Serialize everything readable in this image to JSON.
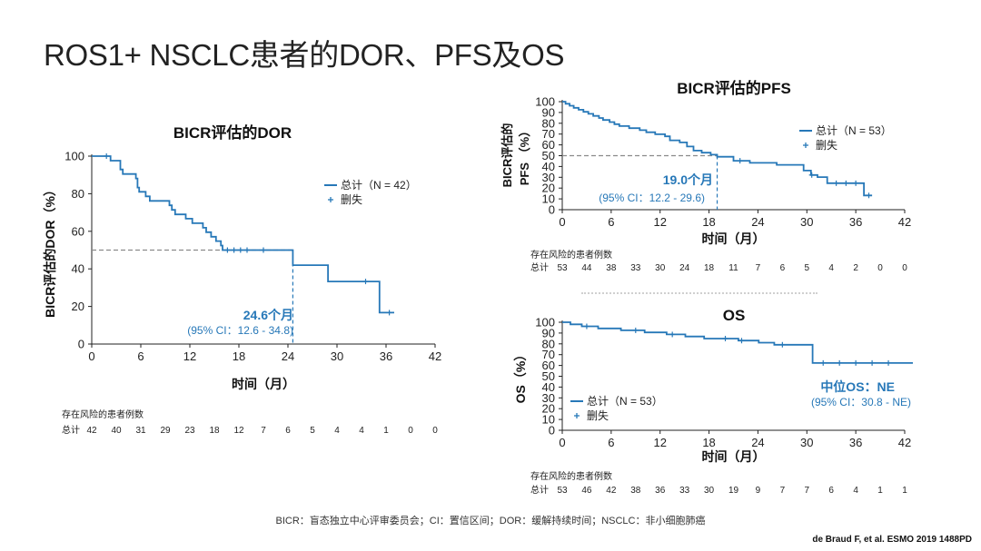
{
  "title": "ROS1+ NSCLC患者的DOR、PFS及OS",
  "footnote": "BICR：盲态独立中心评审委员会；CI：置信区间；DOR：缓解持续时间；NSCLC：非小细胞肺癌",
  "citation": "de Braud F, et al. ESMO 2019 1488PD",
  "colors": {
    "curve": "#2778b8",
    "axis": "#222222",
    "median_line": "#8a8a8a",
    "annotation": "#2778b8"
  },
  "chart_data": [
    {
      "id": "dor",
      "type": "line",
      "title": "BICR评估的DOR",
      "ylabel": "BICR评估的DOR（%）",
      "xlabel": "时间（月）",
      "xlim": [
        0,
        42
      ],
      "ylim": [
        0,
        100
      ],
      "xticks": [
        0,
        6,
        12,
        18,
        24,
        30,
        36,
        42
      ],
      "yticks": [
        0,
        20,
        40,
        60,
        80,
        100
      ],
      "legend": {
        "series": "总计（N = 42）",
        "censor": "删失",
        "placement": "top-right"
      },
      "median": {
        "value": 24.6,
        "label": "24.6个月",
        "ci": "(95% CI：12.6 - 34.8)"
      },
      "series": [
        {
          "name": "总计（N = 42）",
          "steps": [
            [
              0,
              100
            ],
            [
              2.3,
              97.6
            ],
            [
              3.5,
              92.9
            ],
            [
              3.8,
              90.5
            ],
            [
              5.4,
              88.1
            ],
            [
              5.6,
              83.3
            ],
            [
              5.8,
              81
            ],
            [
              6.6,
              78.6
            ],
            [
              7.1,
              76.2
            ],
            [
              9.5,
              73.8
            ],
            [
              9.8,
              71.4
            ],
            [
              10.2,
              69
            ],
            [
              11.5,
              66.7
            ],
            [
              12.3,
              64.3
            ],
            [
              13.6,
              61.9
            ],
            [
              14,
              59.5
            ],
            [
              14.6,
              57.1
            ],
            [
              15.2,
              54.8
            ],
            [
              15.8,
              52.4
            ],
            [
              16,
              50
            ],
            [
              24.6,
              42
            ],
            [
              28.9,
              33.3
            ],
            [
              35.2,
              16.7
            ],
            [
              37,
              16.7
            ]
          ],
          "censored": [
            [
              1.8,
              100
            ],
            [
              16.6,
              50
            ],
            [
              17.4,
              50
            ],
            [
              18.2,
              50
            ],
            [
              19,
              50
            ],
            [
              21,
              50
            ],
            [
              33.5,
              33.3
            ],
            [
              36.4,
              16.7
            ]
          ]
        }
      ],
      "risk_table": {
        "header": "存在风险的患者例数",
        "row_label": "总计",
        "counts": [
          42,
          40,
          31,
          29,
          23,
          18,
          12,
          7,
          6,
          5,
          4,
          4,
          1,
          0,
          0
        ]
      }
    },
    {
      "id": "pfs",
      "type": "line",
      "title": "BICR评估的PFS",
      "ylabel_line1": "BICR评估的",
      "ylabel_line2": "PFS （%）",
      "xlabel": "时间（月）",
      "xlim": [
        0,
        42
      ],
      "ylim": [
        0,
        100
      ],
      "xticks": [
        0,
        6,
        12,
        18,
        24,
        30,
        36,
        42
      ],
      "yticks": [
        0,
        10,
        20,
        30,
        40,
        50,
        60,
        70,
        80,
        90,
        100
      ],
      "legend": {
        "series": "总计（N = 53）",
        "censor": "删失",
        "placement": "top-right"
      },
      "median": {
        "value": 19.0,
        "label": "19.0个月",
        "ci": "(95% CI：12.2 - 29.6)"
      },
      "series": [
        {
          "name": "总计（N = 53）",
          "steps": [
            [
              0,
              100
            ],
            [
              0.4,
              98.1
            ],
            [
              0.9,
              96.2
            ],
            [
              1.4,
              94.3
            ],
            [
              2,
              92.5
            ],
            [
              2.6,
              90.6
            ],
            [
              3.2,
              88.7
            ],
            [
              3.8,
              86.8
            ],
            [
              4.5,
              84.9
            ],
            [
              5,
              83
            ],
            [
              5.8,
              81.1
            ],
            [
              6.4,
              79.2
            ],
            [
              7,
              77.4
            ],
            [
              8.2,
              75.5
            ],
            [
              9.5,
              73.6
            ],
            [
              10.3,
              71.7
            ],
            [
              11.4,
              69.8
            ],
            [
              12.6,
              67.9
            ],
            [
              13.2,
              64.2
            ],
            [
              14.4,
              62.3
            ],
            [
              15.3,
              58.5
            ],
            [
              16.1,
              54.7
            ],
            [
              17.1,
              52.8
            ],
            [
              18.2,
              50.9
            ],
            [
              19,
              49
            ],
            [
              21,
              45.3
            ],
            [
              23,
              43.4
            ],
            [
              26.3,
              41.5
            ],
            [
              29.6,
              36.2
            ],
            [
              30.5,
              32.1
            ],
            [
              31.3,
              30.2
            ],
            [
              32.5,
              24.5
            ],
            [
              36.6,
              24.5
            ],
            [
              37,
              13.2
            ],
            [
              38,
              13.2
            ]
          ],
          "censored": [
            [
              21.8,
              45.3
            ],
            [
              30.6,
              32.1
            ],
            [
              33.6,
              24.5
            ],
            [
              34.8,
              24.5
            ],
            [
              36,
              24.5
            ],
            [
              37.6,
              13.2
            ]
          ]
        }
      ],
      "risk_table": {
        "header": "存在风险的患者例数",
        "row_label": "总计",
        "counts": [
          53,
          44,
          38,
          33,
          30,
          24,
          18,
          11,
          7,
          6,
          5,
          4,
          2,
          0,
          0
        ]
      }
    },
    {
      "id": "os",
      "type": "line",
      "title": "OS",
      "ylabel": "OS（%）",
      "xlabel": "时间（月）",
      "xlim": [
        0,
        42
      ],
      "ylim": [
        0,
        100
      ],
      "xticks": [
        0,
        6,
        12,
        18,
        24,
        30,
        36,
        42
      ],
      "yticks": [
        0,
        10,
        20,
        30,
        40,
        50,
        60,
        70,
        80,
        90,
        100
      ],
      "legend": {
        "series": "总计（N = 53）",
        "censor": "删失",
        "placement": "bottom-left"
      },
      "median": {
        "label": "中位OS：NE",
        "ci": "(95% CI：30.8 - NE)"
      },
      "series": [
        {
          "name": "总计（N = 53）",
          "steps": [
            [
              0,
              100
            ],
            [
              1,
              98.1
            ],
            [
              2.4,
              96.2
            ],
            [
              4.4,
              94.3
            ],
            [
              7.2,
              92.5
            ],
            [
              10.1,
              90.6
            ],
            [
              12.8,
              88.7
            ],
            [
              15.1,
              86.8
            ],
            [
              17.4,
              84.9
            ],
            [
              21.6,
              83
            ],
            [
              24.1,
              81.1
            ],
            [
              26,
              79.2
            ],
            [
              30.7,
              62.3
            ],
            [
              43,
              62.3
            ]
          ],
          "censored": [
            [
              3,
              96.2
            ],
            [
              9,
              92.5
            ],
            [
              13.5,
              88.7
            ],
            [
              20,
              84.9
            ],
            [
              22,
              83
            ],
            [
              27,
              79.2
            ],
            [
              32,
              62.3
            ],
            [
              34,
              62.3
            ],
            [
              36,
              62.3
            ],
            [
              38,
              62.3
            ],
            [
              40,
              62.3
            ]
          ]
        }
      ],
      "risk_table": {
        "header": "存在风险的患者例数",
        "row_label": "总计",
        "counts": [
          53,
          46,
          42,
          38,
          36,
          33,
          30,
          19,
          9,
          7,
          7,
          6,
          4,
          1,
          1
        ]
      }
    }
  ]
}
